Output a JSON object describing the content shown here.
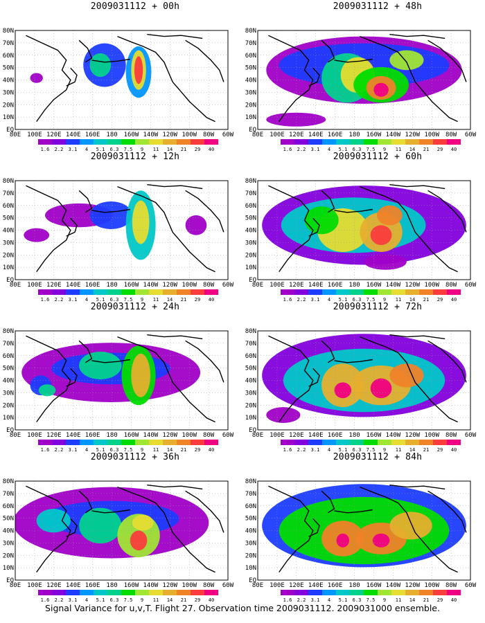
{
  "panels": [
    {
      "title": "2009031112 + 00h"
    },
    {
      "title": "2009031112 + 48h"
    },
    {
      "title": "2009031112 + 12h"
    },
    {
      "title": "2009031112 + 60h"
    },
    {
      "title": "2009031112 + 24h"
    },
    {
      "title": "2009031112 + 72h"
    },
    {
      "title": "2009031112 + 36h"
    },
    {
      "title": "2009031112 + 84h"
    }
  ],
  "lat_labels": [
    "80N",
    "70N",
    "60N",
    "50N",
    "40N",
    "30N",
    "20N",
    "10N",
    "EQ"
  ],
  "lon_labels": [
    "80E",
    "100E",
    "120E",
    "140E",
    "160E",
    "180",
    "160W",
    "140W",
    "120W",
    "100W",
    "80W",
    "60W"
  ],
  "colorbar": {
    "levels": [
      "1.6",
      "2.2",
      "3.1",
      "4",
      "5.1",
      "6.3",
      "7.5",
      "9",
      "11",
      "14",
      "21",
      "29",
      "40"
    ],
    "colors": [
      "#a000c8",
      "#8200dc",
      "#1e3cff",
      "#0096ff",
      "#00c8c8",
      "#00d28c",
      "#00dc00",
      "#a0e632",
      "#e6dc32",
      "#e6af2d",
      "#f08228",
      "#fa3c3c",
      "#f00082"
    ]
  },
  "caption": "Signal Variance for u,v,T. Flight 27. Observation time 2009031112. 2009031000 ensemble."
}
